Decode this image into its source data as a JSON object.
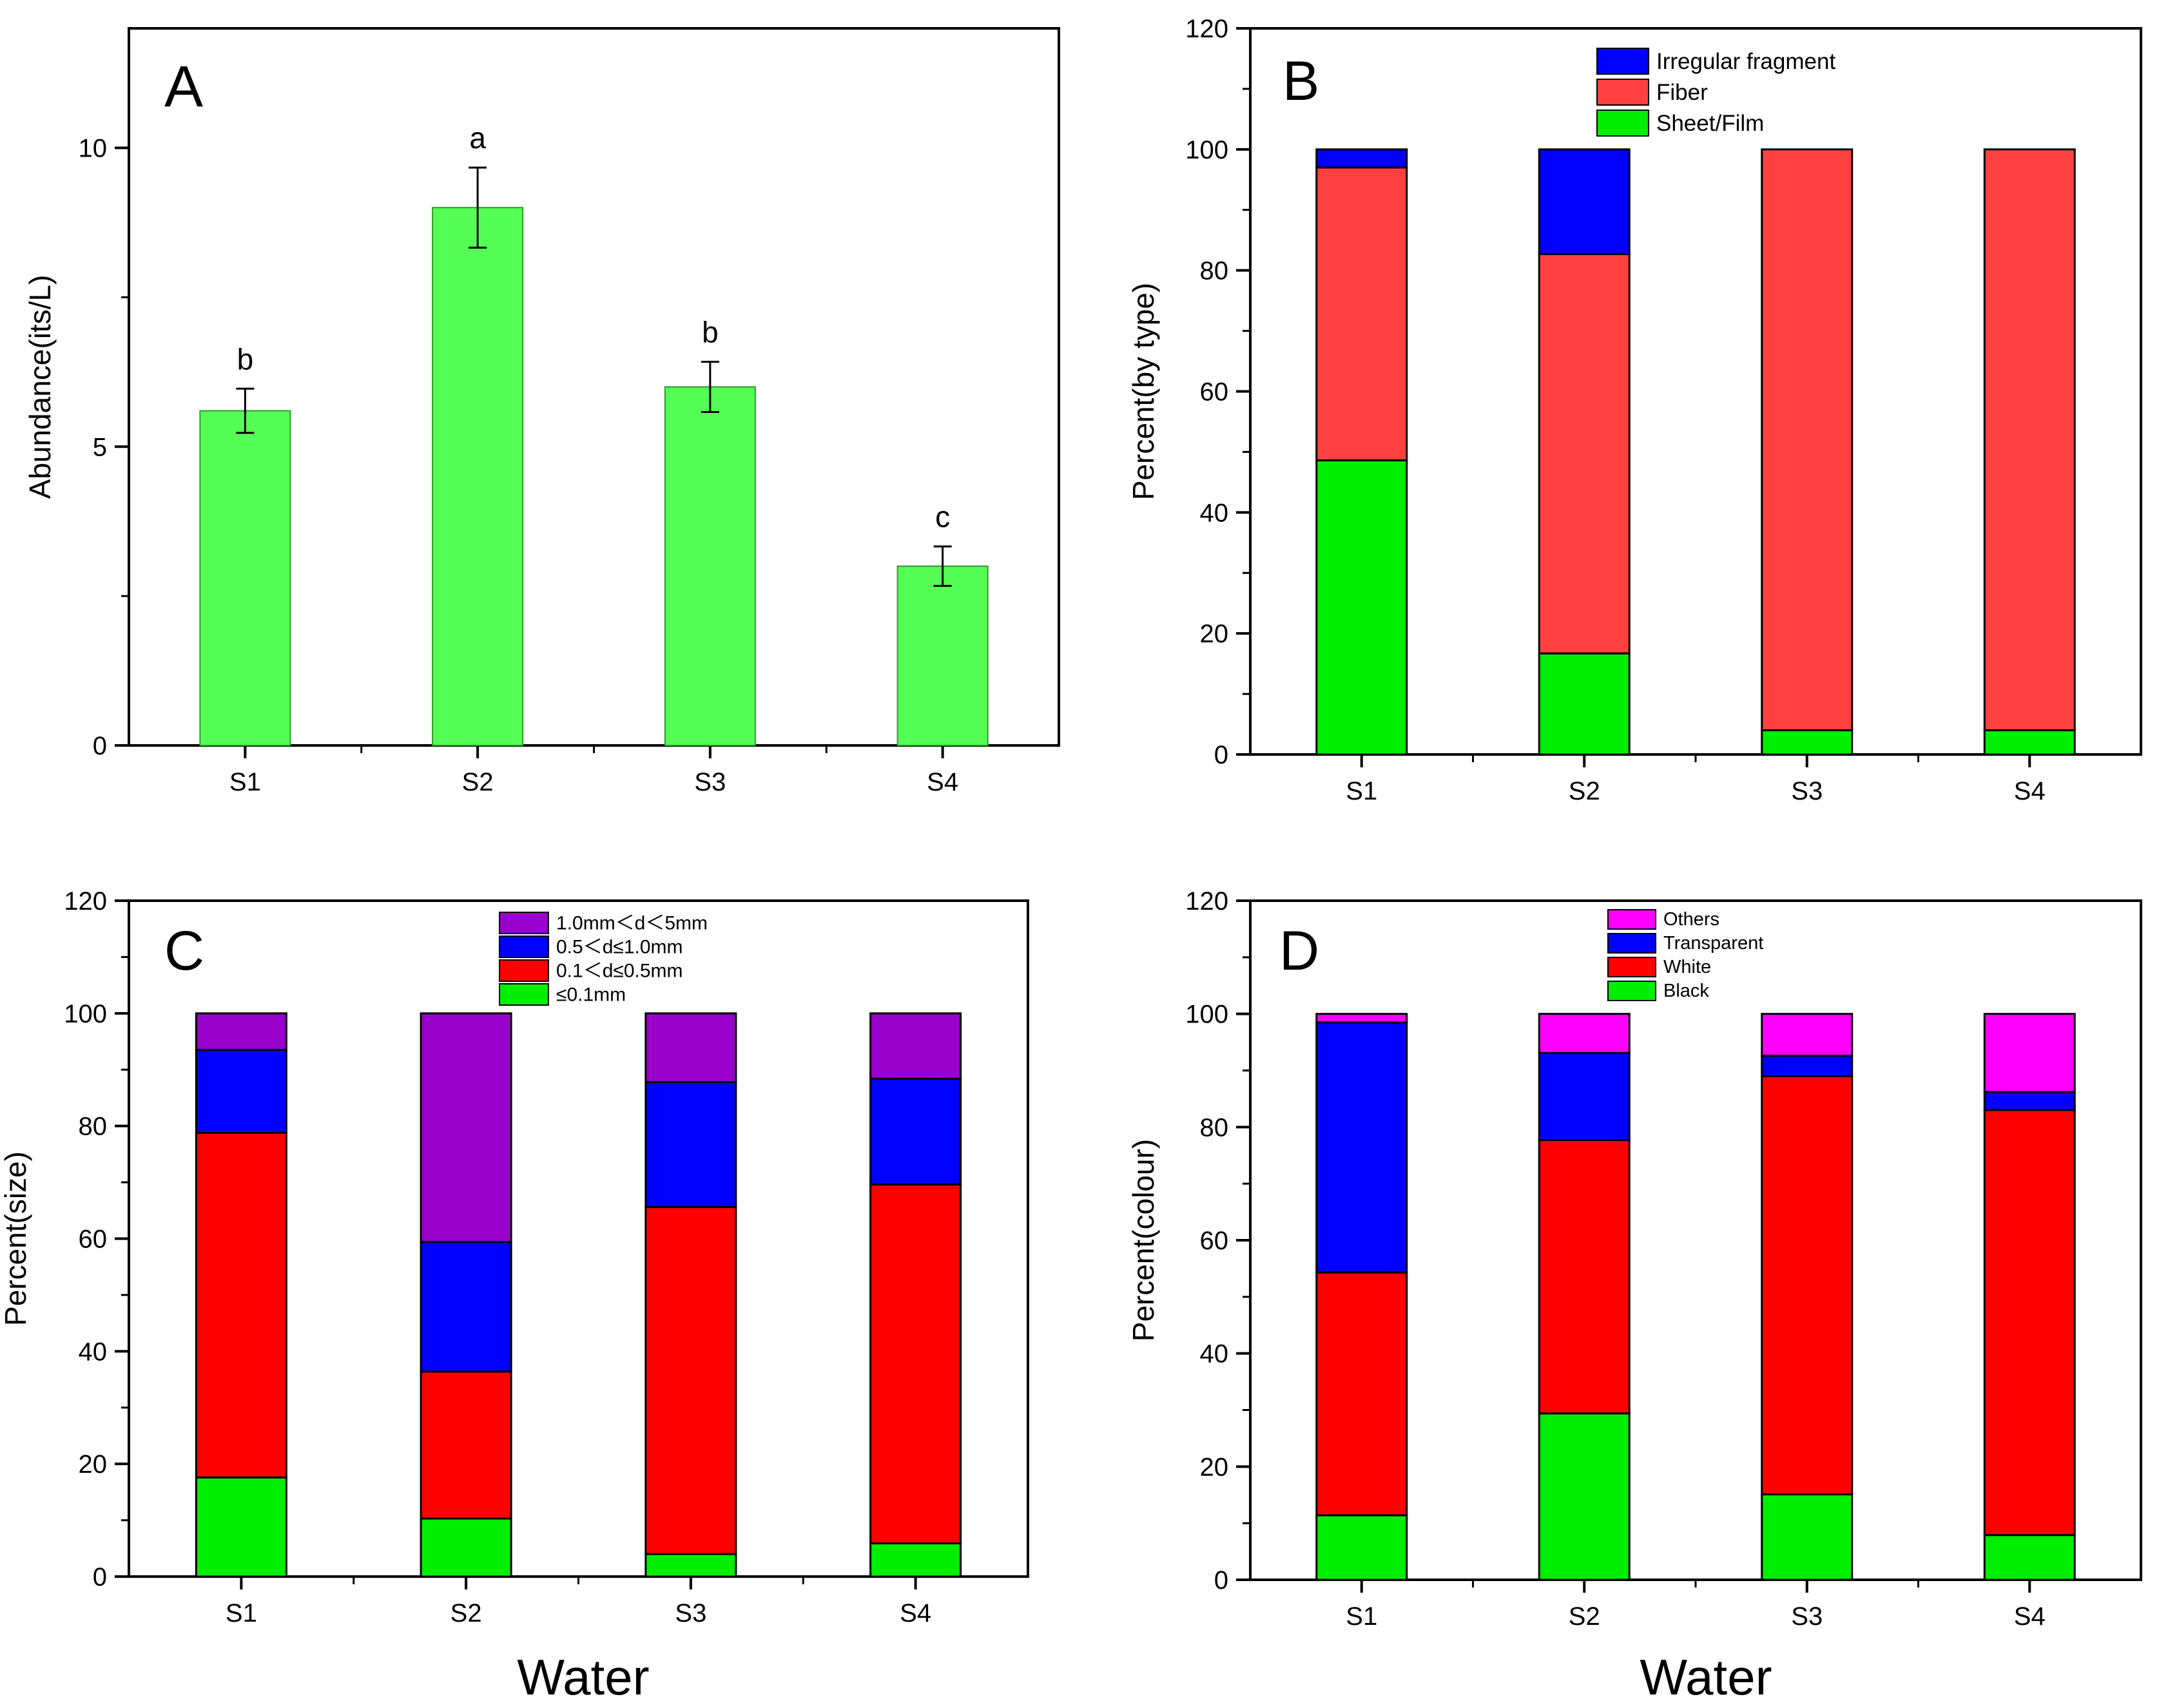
{
  "figure": {
    "xlabels": [
      "Water",
      "Water"
    ]
  },
  "colors": {
    "green": "#33ff33",
    "green_a": "#55ff55",
    "red": "#ff0000",
    "red_b": "#ff4444",
    "blue": "#0000ff",
    "purple": "#9900cc",
    "magenta": "#ff00ff",
    "axis": "#000000"
  },
  "chart_data": [
    {
      "type": "bar",
      "panel": "A",
      "title": "",
      "xlabel": "",
      "ylabel": "Abundance(its/L)",
      "categories": [
        "S1",
        "S2",
        "S3",
        "S4"
      ],
      "values": [
        5.6,
        9.0,
        6.0,
        3.0
      ],
      "errors": [
        0.37,
        0.67,
        0.42,
        0.33
      ],
      "significance": [
        "b",
        "a",
        "b",
        "c"
      ],
      "ylim": [
        0,
        12
      ],
      "yticks": [
        0,
        5,
        10
      ],
      "ytick_labels": [
        "0",
        "5",
        "10"
      ]
    },
    {
      "type": "bar",
      "stacked": true,
      "panel": "B",
      "xlabel": "",
      "ylabel": "Percent(by type)",
      "categories": [
        "S1",
        "S2",
        "S3",
        "S4"
      ],
      "ylim": [
        0,
        120
      ],
      "yticks": [
        0,
        20,
        40,
        60,
        80,
        100,
        120
      ],
      "ytick_labels": [
        "0",
        "20",
        "40",
        "60",
        "80",
        "100",
        "120"
      ],
      "legend_position": "top-center",
      "legend": [
        "Irregular fragment",
        "Fiber",
        "Sheet/Film"
      ],
      "series": [
        {
          "name": "Sheet/Film",
          "color": "#00ee00",
          "values": [
            48.6,
            16.7,
            4.0,
            4.0
          ]
        },
        {
          "name": "Fiber",
          "color": "#ff4040",
          "values": [
            48.4,
            66.0,
            96.0,
            96.0
          ]
        },
        {
          "name": "Irregular fragment",
          "color": "#0000ff",
          "values": [
            3.0,
            17.3,
            0.0,
            0.0
          ]
        }
      ]
    },
    {
      "type": "bar",
      "stacked": true,
      "panel": "C",
      "xlabel": "Water",
      "ylabel": "Percent(size)",
      "categories": [
        "S1",
        "S2",
        "S3",
        "S4"
      ],
      "ylim": [
        0,
        120
      ],
      "yticks": [
        0,
        20,
        40,
        60,
        80,
        100,
        120
      ],
      "ytick_labels": [
        "0",
        "20",
        "40",
        "60",
        "80",
        "100",
        "120"
      ],
      "legend_position": "top-center",
      "legend": [
        "1.0mm＜d＜5mm",
        "0.5＜d≤1.0mm",
        "0.1＜d≤0.5mm",
        "≤0.1mm"
      ],
      "series": [
        {
          "name": "≤0.1mm",
          "color": "#00ee00",
          "values": [
            17.6,
            10.3,
            4.0,
            5.9
          ]
        },
        {
          "name": "0.1＜d≤0.5mm",
          "color": "#ff0000",
          "values": [
            61.2,
            26.1,
            61.6,
            63.7
          ]
        },
        {
          "name": "0.5＜d≤1.0mm",
          "color": "#0000ff",
          "values": [
            14.7,
            23.0,
            22.2,
            18.8
          ]
        },
        {
          "name": "1.0mm＜d＜5mm",
          "color": "#9900cc",
          "values": [
            6.5,
            40.6,
            12.2,
            11.6
          ]
        }
      ]
    },
    {
      "type": "bar",
      "stacked": true,
      "panel": "D",
      "xlabel": "Water",
      "ylabel": "Percent(colour)",
      "categories": [
        "S1",
        "S2",
        "S3",
        "S4"
      ],
      "ylim": [
        0,
        120
      ],
      "yticks": [
        0,
        20,
        40,
        60,
        80,
        100,
        120
      ],
      "ytick_labels": [
        "0",
        "20",
        "40",
        "60",
        "80",
        "100",
        "120"
      ],
      "legend_position": "top-center",
      "legend": [
        "Others",
        "Transparent",
        "White",
        "Black"
      ],
      "series": [
        {
          "name": "Black",
          "color": "#00ee00",
          "values": [
            11.4,
            29.4,
            15.1,
            7.9
          ]
        },
        {
          "name": "White",
          "color": "#ff0000",
          "values": [
            42.9,
            48.3,
            73.9,
            75.1
          ]
        },
        {
          "name": "Transparent",
          "color": "#0000ff",
          "values": [
            44.2,
            15.4,
            3.6,
            3.2
          ]
        },
        {
          "name": "Others",
          "color": "#ff00ff",
          "values": [
            1.5,
            6.9,
            7.4,
            13.8
          ]
        }
      ]
    }
  ]
}
